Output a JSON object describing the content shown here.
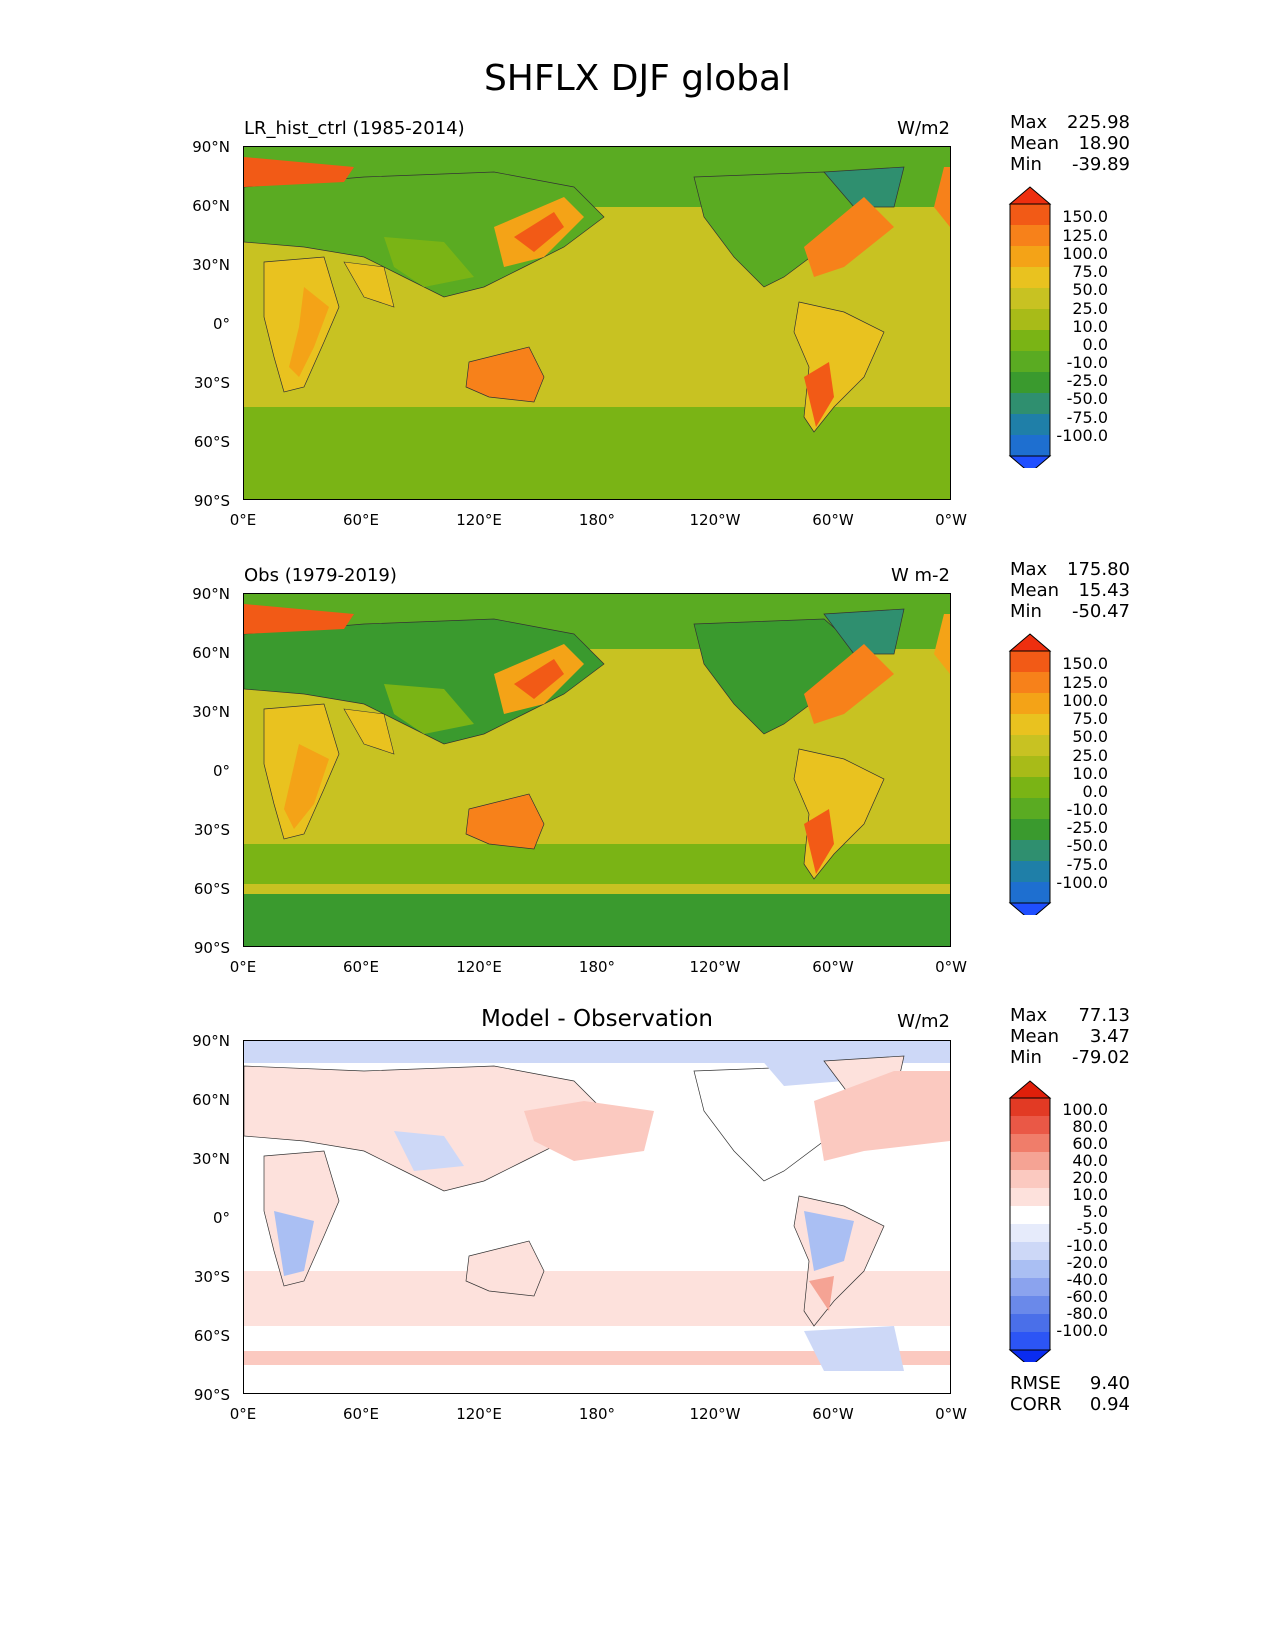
{
  "title": "SHFLX DJF global",
  "colors": {
    "field": [
      "#1f4fff",
      "#1e6fd0",
      "#1f7fa8",
      "#2f8f6f",
      "#3a9a2e",
      "#5aab22",
      "#7ab415",
      "#a8bb18",
      "#c8c222",
      "#e9c21f",
      "#f4a317",
      "#f7811a",
      "#f25a16",
      "#ee2f0f"
    ],
    "diff": [
      "#0a2cf0",
      "#2c55f5",
      "#4a6fe9",
      "#6a89ea",
      "#8ba3ee",
      "#aabff3",
      "#cdd8f7",
      "#e6ebfb",
      "#ffffff",
      "#fde1dc",
      "#fbc9c0",
      "#f5a394",
      "#f07d6a",
      "#ea5846",
      "#e23a24",
      "#e01f0a"
    ]
  },
  "panels": [
    {
      "id": "model",
      "title": "LR_hist_ctrl (1985-2014)",
      "units": "W/m2",
      "stats": {
        "max_label": "Max",
        "max": "225.98",
        "mean_label": "Mean",
        "mean": "18.90",
        "min_label": "Min",
        "min": "-39.89"
      },
      "colorbar": [
        "150.0",
        "125.0",
        "100.0",
        "75.0",
        "50.0",
        "25.0",
        "10.0",
        "0.0",
        "-10.0",
        "-25.0",
        "-50.0",
        "-75.0",
        "-100.0"
      ]
    },
    {
      "id": "obs",
      "title": "Obs (1979-2019)",
      "units": "W m-2",
      "stats": {
        "max_label": "Max",
        "max": "175.80",
        "mean_label": "Mean",
        "mean": "15.43",
        "min_label": "Min",
        "min": "-50.47"
      },
      "colorbar": [
        "150.0",
        "125.0",
        "100.0",
        "75.0",
        "50.0",
        "25.0",
        "10.0",
        "0.0",
        "-10.0",
        "-25.0",
        "-50.0",
        "-75.0",
        "-100.0"
      ]
    },
    {
      "id": "diff",
      "title": "Model - Observation",
      "units": "W/m2",
      "stats": {
        "max_label": "Max",
        "max": "77.13",
        "mean_label": "Mean",
        "mean": "3.47",
        "min_label": "Min",
        "min": "-79.02"
      },
      "colorbar": [
        "100.0",
        "80.0",
        "60.0",
        "40.0",
        "20.0",
        "10.0",
        "5.0",
        "-5.0",
        "-10.0",
        "-20.0",
        "-40.0",
        "-60.0",
        "-80.0",
        "-100.0"
      ],
      "metrics": {
        "rmse_label": "RMSE",
        "rmse": "9.40",
        "corr_label": "CORR",
        "corr": "0.94"
      }
    }
  ],
  "lat_labels": [
    "90°N",
    "60°N",
    "30°N",
    "0°",
    "30°S",
    "60°S",
    "90°S"
  ],
  "lon_labels": [
    "0°E",
    "60°E",
    "120°E",
    "180°",
    "120°W",
    "60°W",
    "0°W"
  ]
}
